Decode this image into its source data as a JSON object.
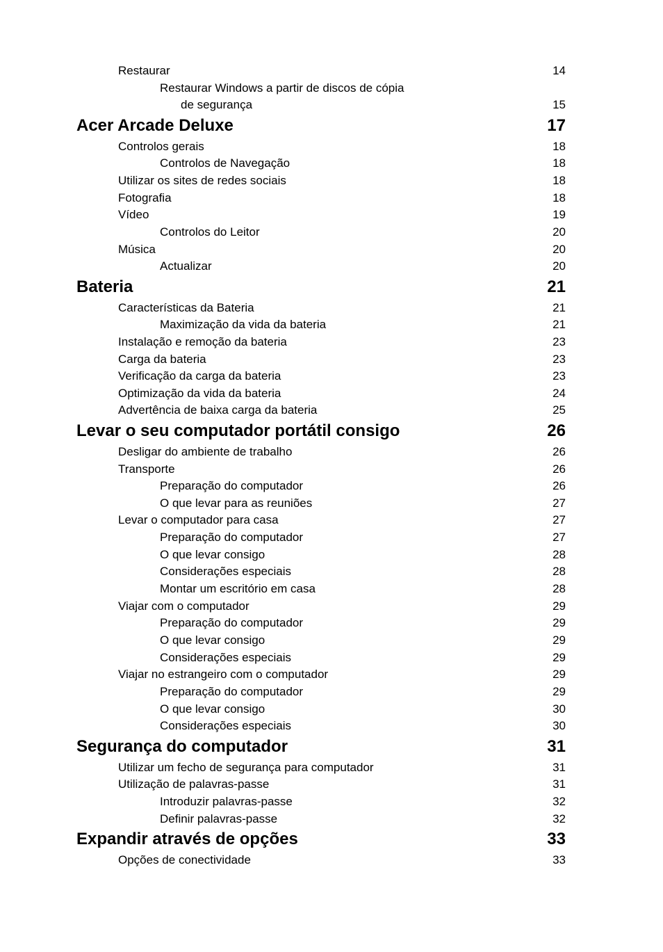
{
  "toc": [
    {
      "level": 2,
      "title": "Restaurar",
      "page": "14"
    },
    {
      "level": 3,
      "title": "Restaurar Windows a partir de discos de cópia",
      "page": ""
    },
    {
      "level": 3,
      "title": "de segurança",
      "page": "15",
      "continuation": true
    },
    {
      "level": 1,
      "title": "Acer Arcade Deluxe",
      "page": "17"
    },
    {
      "level": 2,
      "title": "Controlos gerais",
      "page": "18"
    },
    {
      "level": 3,
      "title": "Controlos de Navegação",
      "page": "18"
    },
    {
      "level": 2,
      "title": "Utilizar os sites de redes sociais",
      "page": "18"
    },
    {
      "level": 2,
      "title": "Fotografia",
      "page": "18"
    },
    {
      "level": 2,
      "title": "Vídeo",
      "page": "19"
    },
    {
      "level": 3,
      "title": "Controlos do Leitor",
      "page": "20"
    },
    {
      "level": 2,
      "title": "Música",
      "page": "20"
    },
    {
      "level": 3,
      "title": "Actualizar",
      "page": "20"
    },
    {
      "level": 1,
      "title": "Bateria",
      "page": "21"
    },
    {
      "level": 2,
      "title": "Características da Bateria",
      "page": "21"
    },
    {
      "level": 3,
      "title": "Maximização da vida da bateria",
      "page": "21"
    },
    {
      "level": 2,
      "title": "Instalação e remoção da bateria",
      "page": "23"
    },
    {
      "level": 2,
      "title": "Carga da bateria",
      "page": "23"
    },
    {
      "level": 2,
      "title": "Verificação da carga da bateria",
      "page": "23"
    },
    {
      "level": 2,
      "title": "Optimização da vida da bateria",
      "page": "24"
    },
    {
      "level": 2,
      "title": "Advertência de baixa carga da bateria",
      "page": "25"
    },
    {
      "level": 1,
      "title": "Levar o seu computador portátil consigo",
      "page": "26"
    },
    {
      "level": 2,
      "title": "Desligar do ambiente de trabalho",
      "page": "26"
    },
    {
      "level": 2,
      "title": "Transporte",
      "page": "26"
    },
    {
      "level": 3,
      "title": "Preparação do computador",
      "page": "26"
    },
    {
      "level": 3,
      "title": "O que levar para as reuniões",
      "page": "27"
    },
    {
      "level": 2,
      "title": "Levar o computador para casa",
      "page": "27"
    },
    {
      "level": 3,
      "title": "Preparação do computador",
      "page": "27"
    },
    {
      "level": 3,
      "title": "O que levar consigo",
      "page": "28"
    },
    {
      "level": 3,
      "title": "Considerações especiais",
      "page": "28"
    },
    {
      "level": 3,
      "title": "Montar um escritório em casa",
      "page": "28"
    },
    {
      "level": 2,
      "title": "Viajar com o computador",
      "page": "29"
    },
    {
      "level": 3,
      "title": "Preparação do computador",
      "page": "29"
    },
    {
      "level": 3,
      "title": "O que levar consigo",
      "page": "29"
    },
    {
      "level": 3,
      "title": "Considerações especiais",
      "page": "29"
    },
    {
      "level": 2,
      "title": "Viajar no estrangeiro com o computador",
      "page": "29"
    },
    {
      "level": 3,
      "title": "Preparação do computador",
      "page": "29"
    },
    {
      "level": 3,
      "title": "O que levar consigo",
      "page": "30"
    },
    {
      "level": 3,
      "title": "Considerações especiais",
      "page": "30"
    },
    {
      "level": 1,
      "title": "Segurança do computador",
      "page": "31"
    },
    {
      "level": 2,
      "title": "Utilizar um fecho de segurança para computador",
      "page": "31"
    },
    {
      "level": 2,
      "title": "Utilização de palavras-passe",
      "page": "31"
    },
    {
      "level": 3,
      "title": "Introduzir palavras-passe",
      "page": "32"
    },
    {
      "level": 3,
      "title": "Definir palavras-passe",
      "page": "32"
    },
    {
      "level": 1,
      "title": "Expandir através de opções",
      "page": "33"
    },
    {
      "level": 2,
      "title": "Opções de conectividade",
      "page": "33"
    }
  ]
}
